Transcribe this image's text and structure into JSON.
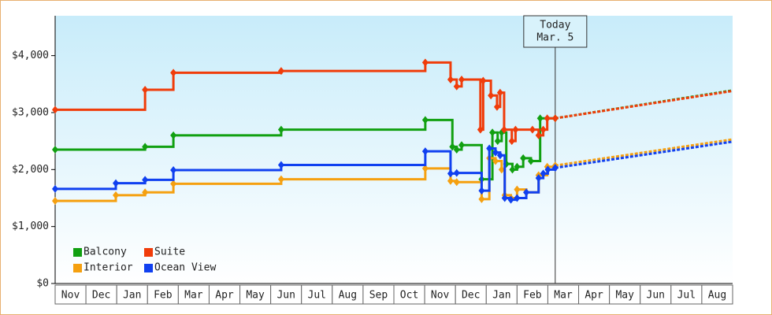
{
  "chart_data": {
    "type": "step-line",
    "month_labels": [
      "Nov",
      "Dec",
      "Jan",
      "Feb",
      "Mar",
      "Apr",
      "May",
      "Jun",
      "Jul",
      "Aug",
      "Sep",
      "Oct",
      "Nov",
      "Dec",
      "Jan",
      "Feb",
      "Mar",
      "Apr",
      "May",
      "Jun",
      "Jul",
      "Aug"
    ],
    "xlim": [
      0,
      22
    ],
    "ylim": [
      0,
      4700
    ],
    "yticks": [
      {
        "value": 0,
        "label": "$0"
      },
      {
        "value": 1000,
        "label": "$1,000"
      },
      {
        "value": 2000,
        "label": "$2,000"
      },
      {
        "value": 3000,
        "label": "$3,000"
      },
      {
        "value": 4000,
        "label": "$4,000"
      }
    ],
    "annotation": {
      "lines": [
        "Today",
        "Mar. 5"
      ],
      "x": 16.24
    },
    "series": [
      {
        "name": "Balcony",
        "color": "#11a011",
        "x": [
          0,
          2.92,
          3.84,
          7.34,
          12.02,
          12.9,
          13.04,
          13.2,
          13.85,
          14.2,
          14.37,
          14.5,
          14.65,
          14.85,
          15.0,
          15.2,
          15.45,
          15.75,
          16.24
        ],
        "values": [
          2350,
          2400,
          2600,
          2700,
          2870,
          2400,
          2350,
          2430,
          1830,
          2650,
          2500,
          2650,
          2100,
          2000,
          2050,
          2200,
          2150,
          2900,
          2900
        ],
        "forecast": {
          "x": [
            16.24,
            22
          ],
          "values": [
            2900,
            3390
          ]
        }
      },
      {
        "name": "Suite",
        "color": "#f03c0a",
        "x": [
          0,
          2.92,
          3.84,
          7.34,
          12.02,
          12.84,
          13.04,
          13.2,
          13.81,
          13.9,
          14.15,
          14.35,
          14.45,
          14.58,
          14.83,
          14.95,
          15.5,
          15.7,
          15.85,
          15.98,
          16.24
        ],
        "values": [
          3050,
          3400,
          3700,
          3730,
          3880,
          3580,
          3460,
          3580,
          2700,
          3560,
          3300,
          3100,
          3350,
          2700,
          2500,
          2700,
          2700,
          2600,
          2700,
          2900,
          2900
        ],
        "forecast": {
          "x": [
            16.24,
            22
          ],
          "values": [
            2900,
            3380
          ]
        }
      },
      {
        "name": "Interior",
        "color": "#f5a010",
        "x": [
          0,
          1.97,
          2.92,
          3.84,
          7.34,
          12.02,
          12.84,
          13.04,
          13.85,
          14.1,
          14.3,
          14.5,
          14.6,
          14.8,
          15.0,
          15.3,
          15.7,
          15.98,
          16.24
        ],
        "values": [
          1450,
          1550,
          1600,
          1750,
          1830,
          2020,
          1800,
          1780,
          1480,
          2200,
          2150,
          2000,
          1550,
          1500,
          1650,
          1600,
          1900,
          2050,
          2070
        ],
        "forecast": {
          "x": [
            16.24,
            22
          ],
          "values": [
            2070,
            2530
          ]
        }
      },
      {
        "name": "Ocean View",
        "color": "#1040f0",
        "x": [
          0,
          1.97,
          2.92,
          3.84,
          7.34,
          12.02,
          12.84,
          13.04,
          13.85,
          14.1,
          14.3,
          14.45,
          14.6,
          14.8,
          15.0,
          15.3,
          15.7,
          15.85,
          16.0,
          16.24
        ],
        "values": [
          1660,
          1760,
          1820,
          1990,
          2080,
          2320,
          1930,
          1940,
          1630,
          2370,
          2300,
          2250,
          1500,
          1470,
          1500,
          1600,
          1850,
          1930,
          2000,
          2030
        ],
        "forecast": {
          "x": [
            16.24,
            22
          ],
          "values": [
            2030,
            2490
          ]
        }
      }
    ]
  }
}
